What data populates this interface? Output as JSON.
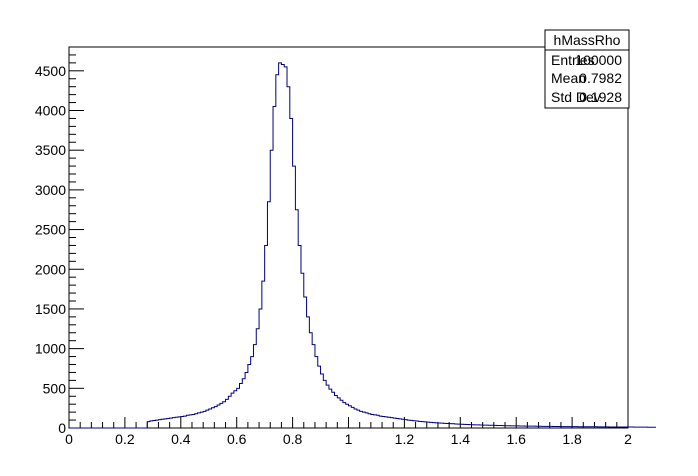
{
  "chart_data": {
    "type": "histogram",
    "title": "",
    "xlabel": "",
    "ylabel": "",
    "xlim": [
      0,
      2
    ],
    "ylim": [
      0,
      4800
    ],
    "line_color": "#000080",
    "grid": false,
    "x_ticks": [
      "0",
      "0.2",
      "0.4",
      "0.6",
      "0.8",
      "1",
      "1.2",
      "1.4",
      "1.6",
      "1.8",
      "2"
    ],
    "y_ticks": [
      "0",
      "500",
      "1000",
      "1500",
      "2000",
      "2500",
      "3000",
      "3500",
      "4000",
      "4500"
    ],
    "bins": 200,
    "bin_width": 0.01,
    "series": [
      {
        "name": "hMassRho",
        "values": [
          0,
          0,
          0,
          0,
          0,
          0,
          0,
          0,
          0,
          0,
          0,
          0,
          0,
          0,
          0,
          0,
          0,
          0,
          0,
          0,
          0,
          0,
          0,
          0,
          0,
          0,
          0,
          0,
          80,
          90,
          95,
          100,
          105,
          110,
          115,
          120,
          125,
          130,
          135,
          140,
          145,
          150,
          160,
          165,
          170,
          180,
          190,
          200,
          210,
          225,
          240,
          255,
          270,
          290,
          310,
          330,
          360,
          400,
          440,
          470,
          500,
          560,
          620,
          700,
          800,
          900,
          1050,
          1250,
          1500,
          1850,
          2300,
          2850,
          3500,
          4050,
          4450,
          4600,
          4580,
          4550,
          4300,
          3900,
          3300,
          2750,
          2300,
          1950,
          1650,
          1400,
          1200,
          1050,
          900,
          780,
          680,
          600,
          540,
          490,
          450,
          410,
          380,
          350,
          320,
          300,
          280,
          260,
          240,
          225,
          210,
          200,
          190,
          180,
          170,
          165,
          160,
          150,
          145,
          140,
          135,
          130,
          125,
          120,
          115,
          110,
          105,
          100,
          96,
          92,
          88,
          84,
          80,
          77,
          74,
          71,
          68,
          65,
          63,
          61,
          59,
          57,
          55,
          53,
          51,
          49,
          48,
          46,
          44,
          42,
          41,
          40,
          39,
          38,
          37,
          36,
          35,
          34,
          33,
          32,
          31,
          30,
          29,
          28,
          27,
          26,
          26,
          25,
          25,
          24,
          24,
          23,
          23,
          22,
          22,
          21,
          21,
          20,
          20,
          19,
          19,
          19,
          18,
          18,
          18,
          17,
          17,
          17,
          16,
          16,
          16,
          15,
          15,
          15,
          15,
          14,
          14,
          14,
          14,
          13,
          13,
          13,
          13,
          12,
          12,
          12,
          12,
          12,
          11,
          11,
          11,
          11,
          11,
          10,
          10,
          10
        ]
      }
    ]
  },
  "stats_box": {
    "title": "hMassRho",
    "rows": [
      {
        "label": "Entries",
        "value": "100000"
      },
      {
        "label": "Mean",
        "value": "0.7982"
      },
      {
        "label": "Std Dev",
        "value": "0.1928"
      }
    ]
  }
}
